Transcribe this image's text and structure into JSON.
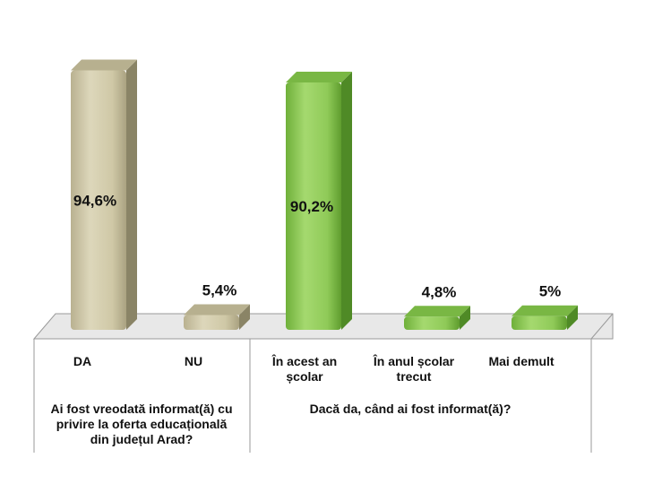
{
  "chart_data": {
    "type": "bar",
    "categories": [
      "DA",
      "NU",
      "În acest an școlar",
      "În anul școlar trecut",
      "Mai demult"
    ],
    "category_lines": [
      [
        "DA"
      ],
      [
        "NU"
      ],
      [
        "În acest an",
        "școlar"
      ],
      [
        "În anul școlar",
        "trecut"
      ],
      [
        "Mai demult"
      ]
    ],
    "values": [
      94.6,
      5.4,
      90.2,
      4.8,
      5
    ],
    "value_labels": [
      "94,6%",
      "5,4%",
      "90,2%",
      "4,8%",
      "5%"
    ],
    "groups": [
      {
        "lines": [
          "Ai fost vreodată informat(ă) cu",
          "privire la oferta educațională",
          "din județul Arad?"
        ]
      },
      {
        "lines": [
          "Dacă da, când ai fost informat(ă)?"
        ]
      }
    ],
    "colors": {
      "group1_front": "#cfc8a6",
      "group1_side": "#8a8466",
      "group1_top": "#b7b08f",
      "group2_front": "#8fca58",
      "group2_side": "#4f8a26",
      "group2_top": "#79b744"
    },
    "ylim": [
      0,
      100
    ],
    "grid": false
  }
}
